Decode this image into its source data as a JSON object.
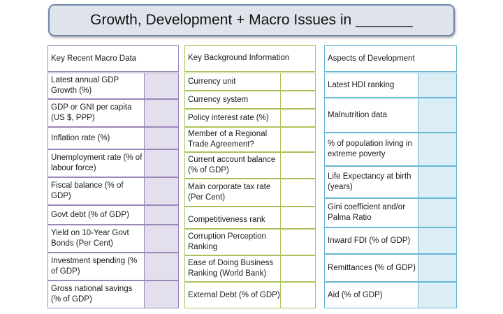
{
  "title": "Growth, Development + Macro Issues in _______",
  "macro": {
    "header": "Key Recent Macro Data",
    "rows": [
      "Latest annual GDP Growth (%)",
      "GDP or GNI per capita (US $, PPP)",
      "Inflation rate (%)",
      "Unemployment rate (% of labour force)",
      "Fiscal balance (% of GDP)",
      "Govt debt (% of GDP)",
      "Yield on 10-Year Govt Bonds (Per Cent)",
      "Investment spending (% of GDP)",
      "Gross national savings (% of GDP)"
    ]
  },
  "background": {
    "header": "Key Background Information",
    "rows": [
      "Currency unit",
      "Currency system",
      "Policy interest rate (%)",
      "Member of a Regional Trade Agreement?",
      "Current account balance (% of GDP)",
      "Main corporate tax rate (Per Cent)",
      "Competitiveness rank",
      "Corruption Perception Ranking",
      "Ease of Doing Business Ranking (World Bank)",
      "External Debt (% of GDP)"
    ]
  },
  "development": {
    "header": "Aspects of Development",
    "rows": [
      "Latest HDI ranking",
      "Malnutrition data",
      "% of population living in extreme poverty",
      "Life Expectancy at birth (years)",
      "Gini coefficient and/or Palma Ratio",
      "Inward FDI (% of GDP)",
      "Remittances (% of GDP)",
      "Aid (% of GDP)"
    ]
  }
}
